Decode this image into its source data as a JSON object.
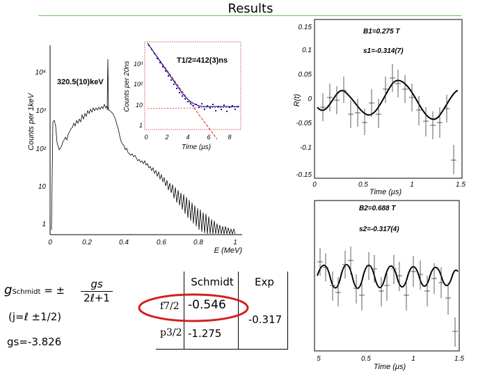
{
  "slide_title": "Results",
  "spectrum": {
    "x_label": "E (MeV)",
    "y_label": "Counts per 1keV",
    "x_ticks": [
      "0",
      "0.2",
      "0.4",
      "0.6",
      "0.8",
      "1"
    ],
    "y_ticks": [
      "1",
      "10",
      "10²",
      "10³",
      "10⁴"
    ],
    "peak_label": "320.5(10)keV"
  },
  "decay_inset": {
    "y_label": "Counts per 20ns",
    "x_label": "Time (μs)",
    "x_ticks": [
      "0",
      "2",
      "4",
      "6",
      "8"
    ],
    "y_ticks": [
      "1",
      "10",
      "10²",
      "10³"
    ],
    "half_life": "T1/2=412(3)ns"
  },
  "rt_plot_top": {
    "y_label": "R(t)",
    "x_label": "Time (μs)",
    "y_ticks": [
      "0.15",
      "0.1",
      "0.05",
      "0",
      "-0.05",
      "-0.1",
      "-0.15"
    ],
    "x_ticks": [
      "0",
      "0.5",
      "1",
      "1.5"
    ],
    "field": "B1=0.275 T",
    "amplitude": "s1=-0.314(7)"
  },
  "rt_plot_bottom": {
    "x_label": "Time (μs)",
    "x_ticks": [
      "5",
      "0.5",
      "1",
      "1.5"
    ],
    "field": "B2=0.688 T",
    "amplitude": "s2=-0.317(4)"
  },
  "formula": {
    "lhs": "g",
    "lhs_sub": "Schmidt",
    "eq": "= ±",
    "num": "gs",
    "den": "2ℓ+1",
    "condition": "(j=ℓ ±1/2)",
    "gs_value": "gs=-3.826"
  },
  "table": {
    "col_schmidt": "Schmidt",
    "col_exp": "Exp",
    "rows": [
      {
        "state": "f7/2",
        "schmidt": "-0.546"
      },
      {
        "state": "p3/2",
        "schmidt": "-1.275"
      }
    ],
    "exp_value": "-0.317"
  },
  "colors": {
    "rule": "#6fbf5a",
    "highlight": "#d42020",
    "fit_red": "#e02020",
    "fit_blue": "#1a1aa0",
    "points_blue": "#1a1aa0"
  }
}
